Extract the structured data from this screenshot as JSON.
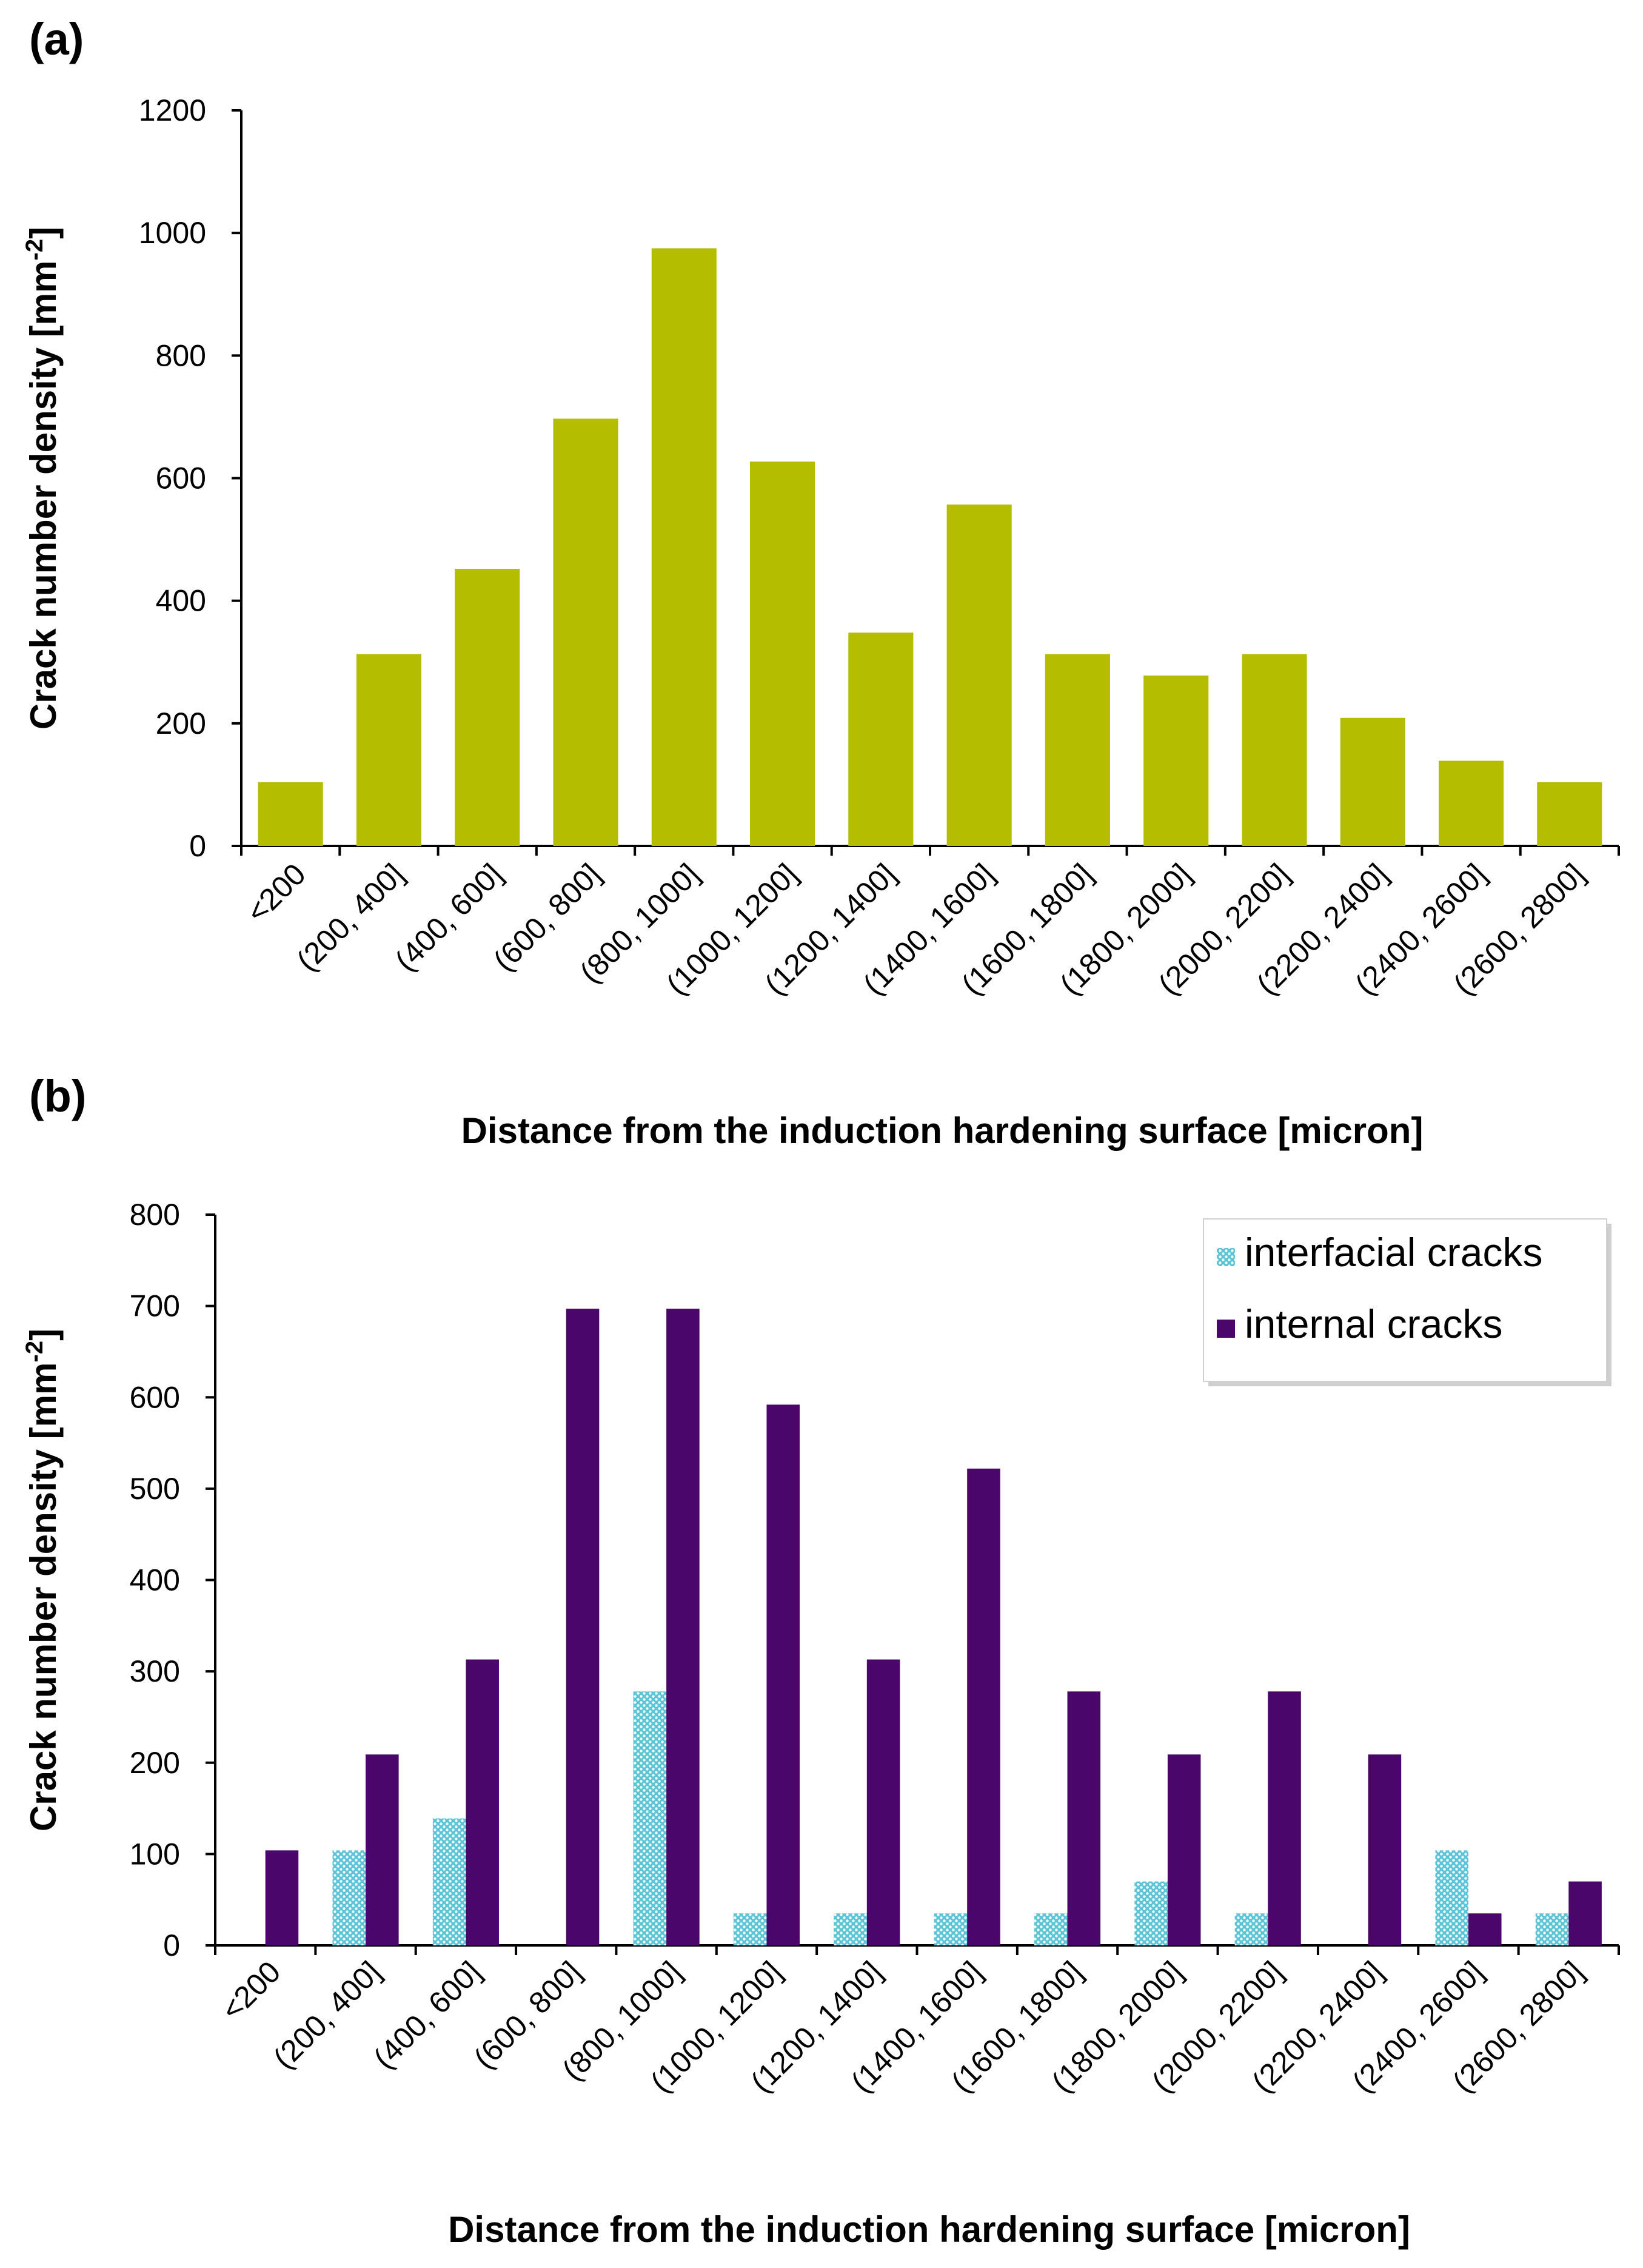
{
  "panels": {
    "a_label": "(a)",
    "b_label": "(b)"
  },
  "chart_data": [
    {
      "type": "bar",
      "panel": "(a)",
      "categories": [
        "<200",
        "(200, 400]",
        "(400, 600]",
        "(600, 800]",
        "(800, 1000]",
        "(1000, 1200]",
        "(1200, 1400]",
        "(1400, 1600]",
        "(1600, 1800]",
        "(1800, 2000]",
        "(2000, 2200]",
        "(2200, 2400]",
        "(2400, 2600]",
        "(2600, 2800]"
      ],
      "series": [
        {
          "name": "crack number density",
          "color": "#b5bd00",
          "values": [
            104,
            313,
            452,
            697,
            975,
            627,
            348,
            557,
            313,
            278,
            313,
            209,
            139,
            104
          ]
        }
      ],
      "xlabel": "Distance from the induction hardening surface [micron]",
      "ylabel": "Crack number density [mm",
      "ylabel_sup": "-2",
      "ylabel_end": "]",
      "ylim": [
        0,
        1200
      ],
      "yticks": [
        0,
        200,
        400,
        600,
        800,
        1000,
        1200
      ],
      "legend": null
    },
    {
      "type": "bar",
      "panel": "(b)",
      "categories": [
        "<200",
        "(200, 400]",
        "(400, 600]",
        "(600, 800]",
        "(800, 1000]",
        "(1000, 1200]",
        "(1200, 1400]",
        "(1400, 1600]",
        "(1600, 1800]",
        "(1800, 2000]",
        "(2000, 2200]",
        "(2200, 2400]",
        "(2400, 2600]",
        "(2600, 2800]"
      ],
      "series": [
        {
          "name": "interfacial cracks",
          "color": "#5bc4d6",
          "pattern": "dotted",
          "values": [
            0,
            104,
            139,
            0,
            278,
            35,
            35,
            35,
            35,
            70,
            35,
            0,
            104,
            35
          ]
        },
        {
          "name": "internal cracks",
          "color": "#4b066b",
          "values": [
            104,
            209,
            313,
            697,
            697,
            592,
            313,
            522,
            278,
            209,
            278,
            209,
            35,
            70
          ]
        }
      ],
      "xlabel": "Distance from the induction hardening surface [micron]",
      "ylabel": "Crack number density [mm",
      "ylabel_sup": "-2",
      "ylabel_end": "]",
      "ylim": [
        0,
        800
      ],
      "yticks": [
        0,
        100,
        200,
        300,
        400,
        500,
        600,
        700,
        800
      ],
      "legend": "top-right"
    }
  ]
}
